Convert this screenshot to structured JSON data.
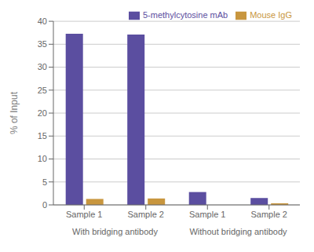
{
  "chart_data": {
    "type": "bar",
    "categories": [
      "Sample 1",
      "Sample 2",
      "Sample 1",
      "Sample 2"
    ],
    "group_labels": [
      "With bridging antibody",
      "Without bridging antibody"
    ],
    "series": [
      {
        "name": "5-methylcytosine mAb",
        "color": "#5B4EA0",
        "values": [
          37.3,
          37.1,
          2.8,
          1.5
        ]
      },
      {
        "name": "Mouse IgG",
        "color": "#C8963E",
        "values": [
          1.3,
          1.4,
          0.0,
          0.35
        ]
      }
    ],
    "ylabel": "% of Input",
    "ylim": [
      0,
      40
    ],
    "yticks": [
      0,
      5,
      10,
      15,
      20,
      25,
      30,
      35,
      40
    ],
    "grid": true,
    "legend": "upper right"
  }
}
